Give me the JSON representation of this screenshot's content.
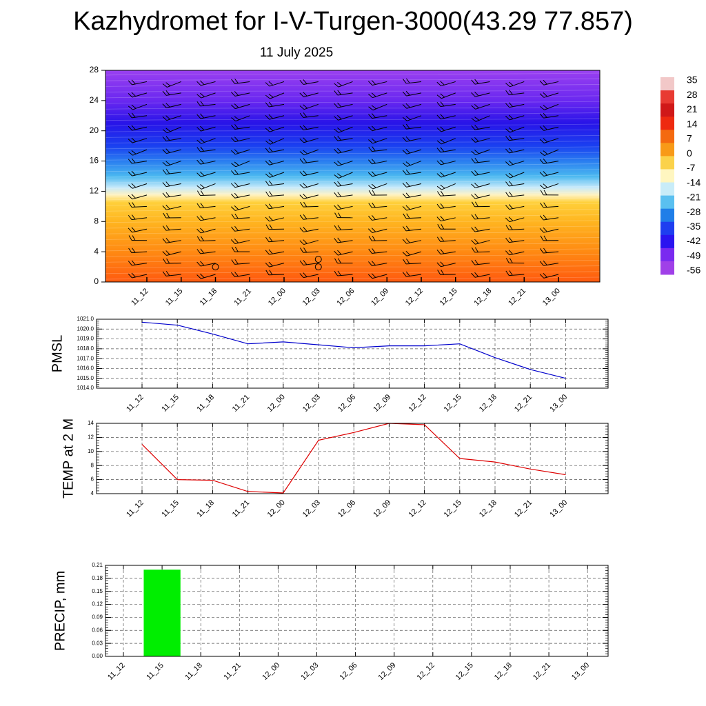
{
  "title": "Kazhydromet for I-V-Turgen-3000(43.29 77.857)",
  "subtitle": "11 July 2025",
  "chart_data": [
    {
      "type": "heatmap",
      "x_ticks": [
        "11_12",
        "11_15",
        "11_18",
        "11_21",
        "12_00",
        "12_03",
        "12_06",
        "12_09",
        "12_12",
        "12_15",
        "12_18",
        "12_21",
        "13_00"
      ],
      "y_ticks": [
        0,
        4,
        8,
        12,
        16,
        20,
        24,
        28
      ],
      "ylim": [
        0,
        28
      ],
      "colorbar_labels": [
        "35",
        "28",
        "21",
        "14",
        "7",
        "0",
        "-7",
        "-14",
        "-21",
        "-28",
        "-35",
        "-42",
        "-49",
        "-56"
      ],
      "colorbar_colors": [
        "#f2c8c8",
        "#e83a32",
        "#d01818",
        "#ee2a10",
        "#f46a10",
        "#f89a18",
        "#fbd24a",
        "#fff6c0",
        "#c8ecf8",
        "#5ac0f0",
        "#1f7ee8",
        "#1e3ef0",
        "#2a14f0",
        "#7a2af0",
        "#a040e8"
      ],
      "profile": [
        {
          "level": 0,
          "color": "#ff5a10"
        },
        {
          "level": 4,
          "color": "#ff8a12"
        },
        {
          "level": 8,
          "color": "#ffb520"
        },
        {
          "level": 10.5,
          "color": "#ffd03a"
        },
        {
          "level": 11.5,
          "color": "#fff2c0"
        },
        {
          "level": 12.5,
          "color": "#c8eafa"
        },
        {
          "level": 14,
          "color": "#4ab8f0"
        },
        {
          "level": 16,
          "color": "#2a7ef0"
        },
        {
          "level": 18,
          "color": "#1a40f0"
        },
        {
          "level": 21,
          "color": "#2814e8"
        },
        {
          "level": 24,
          "color": "#6a28f0"
        },
        {
          "level": 28,
          "color": "#9a40f0"
        }
      ]
    },
    {
      "type": "line",
      "ylabel": "PMSL",
      "x": [
        "11_12",
        "11_15",
        "11_18",
        "11_21",
        "12_00",
        "12_03",
        "12_06",
        "12_09",
        "12_12",
        "12_15",
        "12_18",
        "12_21",
        "13_00"
      ],
      "values": [
        1020.7,
        1020.4,
        1019.5,
        1018.5,
        1018.7,
        1018.4,
        1018.1,
        1018.3,
        1018.3,
        1018.5,
        1017.1,
        1015.9,
        1015.0
      ],
      "ylim": [
        1014,
        1021
      ],
      "y_ticks": [
        "1014.0",
        "1015.0",
        "1016.0",
        "1017.0",
        "1018.0",
        "1019.0",
        "1020.0",
        "1021.0"
      ],
      "color": "#0000cc",
      "grid": true
    },
    {
      "type": "line",
      "ylabel": "TEMP at 2 M",
      "x": [
        "11_12",
        "11_15",
        "11_18",
        "11_21",
        "12_00",
        "12_03",
        "12_06",
        "12_09",
        "12_12",
        "12_15",
        "12_18",
        "12_21",
        "13_00"
      ],
      "values": [
        11.0,
        6.0,
        5.9,
        4.3,
        4.1,
        11.6,
        12.7,
        14.0,
        13.8,
        9.0,
        8.5,
        7.5,
        6.7
      ],
      "ylim": [
        4,
        14
      ],
      "y_ticks": [
        "4",
        "6",
        "8",
        "10",
        "12",
        "14"
      ],
      "color": "#dd0000",
      "grid": true
    },
    {
      "type": "bar",
      "ylabel": "PRECIP, mm",
      "categories": [
        "11_12",
        "11_15",
        "11_18",
        "11_21",
        "12_00",
        "12_03",
        "12_06",
        "12_09",
        "12_12",
        "12_15",
        "12_18",
        "12_21",
        "13_00"
      ],
      "values": [
        0,
        0.2,
        0,
        0,
        0,
        0,
        0,
        0,
        0,
        0,
        0,
        0,
        0
      ],
      "ylim": [
        0,
        0.21
      ],
      "y_ticks": [
        "0.00",
        "0.03",
        "0.06",
        "0.09",
        "0.12",
        "0.15",
        "0.18",
        "0.21"
      ],
      "color": "#00ee00",
      "grid": true
    }
  ]
}
